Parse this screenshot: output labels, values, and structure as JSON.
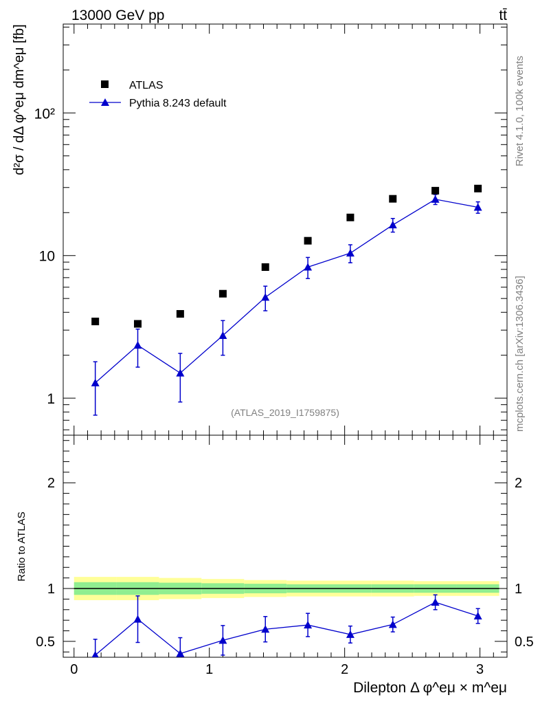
{
  "header": {
    "energy_label": "13000 GeV pp",
    "process_label": "tt̄",
    "analysis_id": "(ATLAS_2019_I1759875)",
    "side_rivet": "Rivet 4.1.0,  100k events",
    "side_mcplots": "mcplots.cern.ch [arXiv:1306.3436]"
  },
  "legend": {
    "data_label": "ATLAS",
    "mc_label": "Pythia 8.243 default"
  },
  "axes": {
    "main_ylabel": "d²σ / dΔ φ^eμ dm^eμ [fb]",
    "ratio_ylabel": "Ratio to ATLAS",
    "xlabel": "Dilepton Δ φ^eμ × m^eμ"
  },
  "colors": {
    "data": "#000000",
    "mc": "#0000cc",
    "band_inner": "#90ee90",
    "band_outer": "#ffff99"
  },
  "chart_data": {
    "type": "scatter",
    "log_y": true,
    "xlim": [
      -0.08,
      3.2
    ],
    "ylim": [
      0.55,
      420
    ],
    "x_ticks": [
      "0",
      "1",
      "2",
      "3"
    ],
    "y_tick_labels": [
      "1",
      "10",
      "10²"
    ],
    "x": [
      0.157,
      0.471,
      0.785,
      1.1,
      1.414,
      1.728,
      2.042,
      2.356,
      2.67,
      2.985
    ],
    "bin_edges": [
      0.0,
      0.314,
      0.628,
      0.942,
      1.257,
      1.571,
      1.885,
      2.199,
      2.513,
      2.827,
      3.142
    ],
    "series": [
      {
        "name": "ATLAS",
        "values": [
          3.45,
          3.32,
          3.9,
          5.4,
          8.3,
          12.7,
          18.5,
          25.0,
          28.5,
          29.5
        ]
      },
      {
        "name": "Pythia 8.243 default",
        "values": [
          1.28,
          2.35,
          1.5,
          2.75,
          5.1,
          8.3,
          10.4,
          16.4,
          24.8,
          21.8
        ],
        "err_low": [
          0.52,
          0.7,
          0.56,
          0.75,
          1.0,
          1.4,
          1.5,
          1.8,
          2.0,
          2.0
        ],
        "err_high": [
          0.52,
          0.7,
          0.56,
          0.75,
          1.0,
          1.4,
          1.5,
          1.8,
          2.0,
          2.0
        ]
      }
    ],
    "ratio": {
      "ylabel": "Ratio to ATLAS",
      "ylim": [
        0.35,
        2.45
      ],
      "y_tick_labels": [
        "0.5",
        "1",
        "2"
      ],
      "values": [
        0.37,
        0.71,
        0.385,
        0.51,
        0.615,
        0.655,
        0.565,
        0.66,
        0.87,
        0.74
      ],
      "err": [
        0.15,
        0.22,
        0.15,
        0.14,
        0.12,
        0.11,
        0.08,
        0.07,
        0.07,
        0.07
      ],
      "band_inner_halfwidth": [
        0.06,
        0.06,
        0.055,
        0.05,
        0.045,
        0.04,
        0.04,
        0.04,
        0.04,
        0.04
      ],
      "band_outer_halfwidth": [
        0.11,
        0.11,
        0.1,
        0.09,
        0.08,
        0.075,
        0.075,
        0.075,
        0.07,
        0.07
      ]
    }
  }
}
